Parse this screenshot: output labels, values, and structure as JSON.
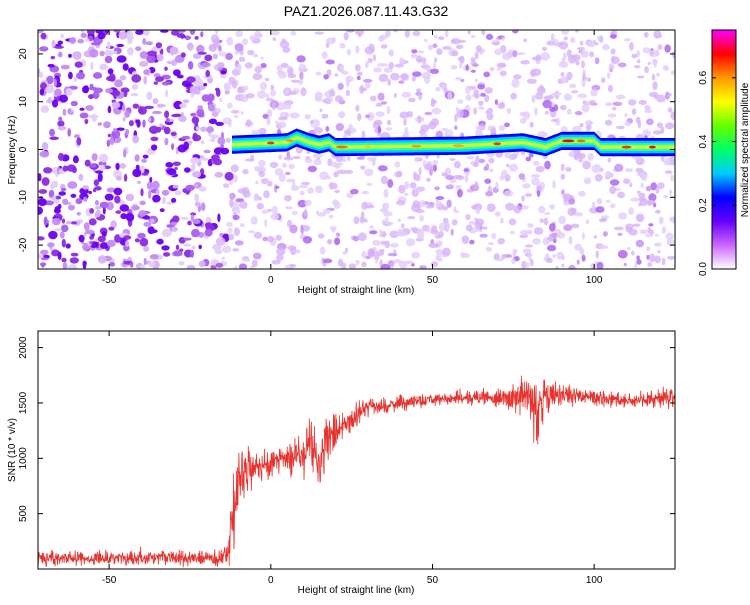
{
  "title": "PAZ1.2026.087.11.43.G32",
  "chart_data": [
    {
      "type": "heatmap",
      "xlabel": "Height of straight line (km)",
      "ylabel": "Frequency (Hz)",
      "xlim": [
        -72,
        125
      ],
      "ylim": [
        -25,
        25
      ],
      "xticks": [
        -50,
        0,
        50,
        100
      ],
      "yticks": [
        -20,
        -10,
        0,
        10,
        20
      ],
      "xtick_labels": [
        "-50",
        "0",
        "50",
        "100"
      ],
      "ytick_labels": [
        "-20",
        "-10",
        "0",
        "10",
        "20"
      ],
      "colorbar": {
        "label": "Normalized spectral amplitude",
        "range": [
          0.0,
          0.75
        ],
        "ticks": [
          0.0,
          0.2,
          0.4,
          0.6
        ],
        "tick_labels": [
          "0.0",
          "0.2",
          "0.4",
          "0.6"
        ],
        "colors": [
          "#ffffff",
          "#cc66ff",
          "#6600ff",
          "#0000ff",
          "#00ccff",
          "#00ff66",
          "#66ff00",
          "#ffff00",
          "#ff9900",
          "#ff0000",
          "#ff00ff"
        ]
      },
      "signal_band": {
        "x_start": -12,
        "x_end": 125,
        "center_freq": [
          [
            -12,
            1.0
          ],
          [
            5,
            1.5
          ],
          [
            8,
            2.5
          ],
          [
            12,
            1.5
          ],
          [
            15,
            1.0
          ],
          [
            18,
            1.5
          ],
          [
            20,
            0.5
          ],
          [
            60,
            0.8
          ],
          [
            78,
            1.5
          ],
          [
            85,
            0.5
          ],
          [
            90,
            1.8
          ],
          [
            100,
            1.8
          ],
          [
            102,
            0.5
          ],
          [
            125,
            0.5
          ]
        ]
      },
      "noise": {
        "strong_region_x": [
          -72,
          -15
        ],
        "weak_region_x": [
          -15,
          125
        ]
      }
    },
    {
      "type": "line",
      "xlabel": "Height of straight line (km)",
      "ylabel": "SNR (10 * v/v)",
      "xlim": [
        -72,
        125
      ],
      "ylim": [
        0,
        2150
      ],
      "xticks": [
        -50,
        0,
        50,
        100
      ],
      "yticks": [
        500,
        1000,
        1500,
        2000
      ],
      "xtick_labels": [
        "-50",
        "0",
        "50",
        "100"
      ],
      "ytick_labels": [
        "500",
        "1000",
        "1500",
        "2000"
      ],
      "series": [
        {
          "name": "SNR",
          "color": "#e8322e",
          "anchors_x": [
            -72,
            -15,
            -13,
            -12,
            -10,
            -8,
            -5,
            0,
            5,
            10,
            12,
            15,
            17,
            20,
            25,
            30,
            40,
            50,
            60,
            70,
            80,
            82,
            85,
            90,
            100,
            110,
            125
          ],
          "anchors_y": [
            100,
            100,
            150,
            300,
            800,
            900,
            900,
            950,
            1000,
            1050,
            1200,
            900,
            1150,
            1250,
            1350,
            1450,
            1500,
            1530,
            1550,
            1550,
            1560,
            1400,
            1550,
            1580,
            1550,
            1520,
            1560
          ],
          "noise_amplitude": [
            60,
            60,
            200,
            350,
            250,
            180,
            120,
            110,
            120,
            180,
            200,
            220,
            220,
            150,
            110,
            80,
            60,
            55,
            55,
            60,
            150,
            350,
            200,
            80,
            70,
            60,
            70
          ]
        }
      ]
    }
  ]
}
